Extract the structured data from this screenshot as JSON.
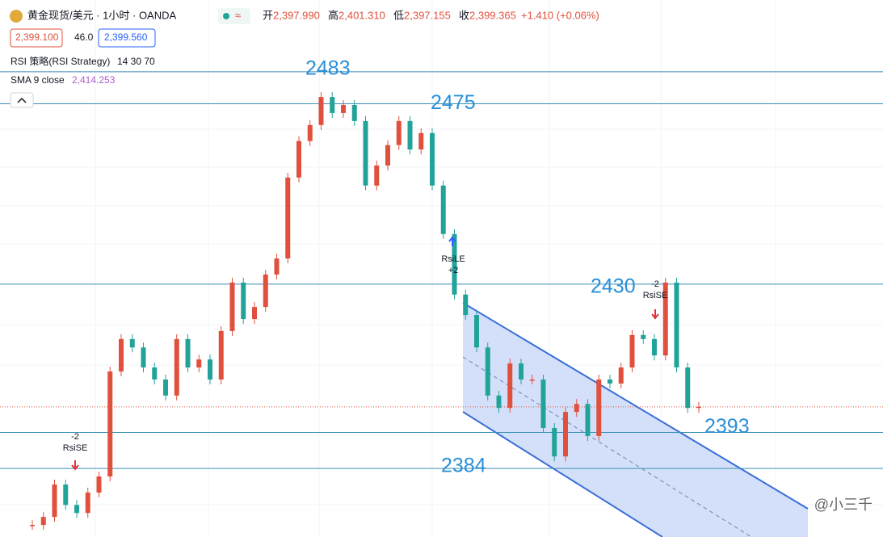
{
  "header": {
    "title": "黄金现货/美元 · 1小时 · OANDA",
    "status_icon": "≈",
    "ohlc": [
      {
        "name": "开",
        "label": "2,397.990"
      },
      {
        "name": "高",
        "label": "2,401.310"
      },
      {
        "name": "低",
        "label": "2,397.155"
      },
      {
        "name": "收",
        "value": 2399.365,
        "label": "2,399.365"
      }
    ],
    "change": "+1.410 (+0.06%)",
    "sell_price": "2,399.100",
    "spread": "46.0",
    "buy_price": "2,399.560",
    "indicators": [
      {
        "name": "RSI 策略(RSI Strategy)",
        "params": "14 30 70"
      },
      {
        "name": "SMA 9 close",
        "params": "2,414.253"
      }
    ]
  },
  "chart": {
    "ylim": [
      2366.9,
      2500.9
    ],
    "levels": [
      2483,
      2475,
      2430,
      2393,
      2384
    ],
    "closes": [
      2369.9,
      2371.9,
      2380.0,
      2374.9,
      2372.9,
      2378.0,
      2382.0,
      2408.2,
      2416.3,
      2414.2,
      2409.2,
      2406.2,
      2402.2,
      2416.3,
      2409.2,
      2411.2,
      2406.2,
      2418.3,
      2430.4,
      2421.3,
      2424.3,
      2432.4,
      2436.4,
      2456.6,
      2465.7,
      2469.7,
      2476.7,
      2472.7,
      2474.7,
      2470.7,
      2454.6,
      2459.6,
      2464.7,
      2470.7,
      2463.6,
      2467.7,
      2454.6,
      2442.5,
      2427.4,
      2422.3,
      2414.2,
      2402.2,
      2399.1,
      2410.2,
      2406.2,
      2406.2,
      2394.1,
      2387.0,
      2398.1,
      2400.1,
      2392.1,
      2406.2,
      2405.2,
      2409.2,
      2417.3,
      2416.3,
      2412.2,
      2430.4,
      2409.2,
      2399.1,
      2399.4
    ],
    "signals": [
      {
        "tag": "-2",
        "name": "RsiSE"
      },
      {
        "tag": "+2",
        "name": "RsiLE"
      },
      {
        "tag": "-2",
        "name": "RsiSE"
      }
    ]
  },
  "watermark": "@小三千"
}
